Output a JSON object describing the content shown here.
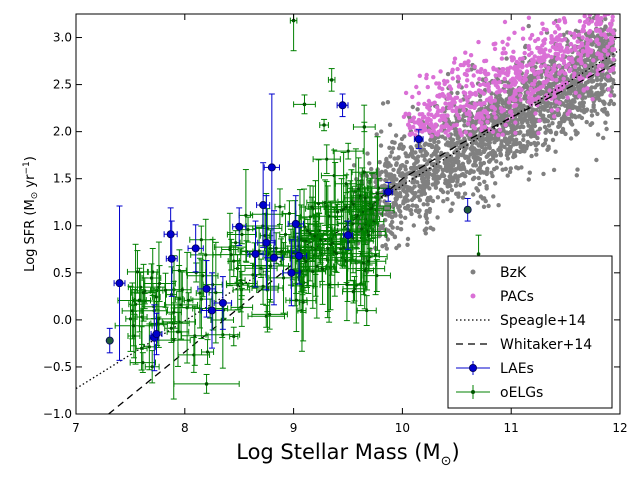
{
  "chart_data": {
    "type": "scatter",
    "title": "",
    "xlabel_main": "Log Stellar Mass (M",
    "xlabel_sub": "⊙",
    "xlabel_end": ")",
    "ylabel_main": "Log SFR (M",
    "ylabel_sub": "⊙",
    "ylabel_mid": " yr",
    "ylabel_sup": "−1",
    "ylabel_end": ")",
    "xlim": [
      7,
      12
    ],
    "ylim": [
      -1.0,
      3.25
    ],
    "xticks": [
      7,
      8,
      9,
      10,
      11,
      12
    ],
    "xtick_labels": [
      "7",
      "8",
      "9",
      "10",
      "11",
      "12"
    ],
    "yticks": [
      -1.0,
      -0.5,
      0.0,
      0.5,
      1.0,
      1.5,
      2.0,
      2.5,
      3.0
    ],
    "ytick_labels": [
      "−1.0",
      "−0.5",
      "0.0",
      "0.5",
      "1.0",
      "1.5",
      "2.0",
      "2.5",
      "3.0"
    ],
    "grid": false,
    "legend_position": "bottom-right",
    "colors": {
      "bzk": "#808080",
      "pacs": "#da70d6",
      "lae": "#0000cc",
      "lae_edge": "#000055",
      "oelg": "#008000",
      "oelg_marker": "#005500",
      "line": "#000000"
    },
    "series": [
      {
        "name": "BzK",
        "kind": "cloud",
        "count": 2200,
        "x_range": [
          9.55,
          11.95
        ],
        "trend": {
          "slope": 0.68,
          "pivot_x": 10.8,
          "pivot_y": 2.0
        },
        "scatter_sigma": 0.28
      },
      {
        "name": "PACs",
        "kind": "cloud",
        "count": 750,
        "x_range": [
          10.0,
          11.95
        ],
        "trend": {
          "slope": 0.55,
          "pivot_x": 11.0,
          "pivot_y": 2.55
        },
        "scatter_sigma": 0.26,
        "y_min": 1.95
      },
      {
        "name": "Speagle+14",
        "kind": "line",
        "style": "dotted",
        "x": [
          7.0,
          12.0
        ],
        "y": [
          -0.73,
          2.87
        ]
      },
      {
        "name": "Whitaker+14",
        "kind": "line",
        "style": "dashed",
        "x": [
          7.3,
          9.0,
          9.6,
          10.0,
          10.5,
          11.0,
          12.0
        ],
        "y": [
          -1.0,
          0.6,
          1.1,
          1.5,
          1.85,
          2.15,
          2.75
        ]
      },
      {
        "name": "LAEs",
        "kind": "errorbar",
        "points": [
          {
            "x": 7.31,
            "y": -0.22,
            "yerr": 0.13,
            "xerr": 0.0,
            "dark": true
          },
          {
            "x": 7.4,
            "y": 0.39,
            "yerr": 0.82,
            "xerr": 0.05
          },
          {
            "x": 7.72,
            "y": -0.19,
            "yerr": 0.35,
            "xerr": 0.04
          },
          {
            "x": 7.74,
            "y": -0.15,
            "yerr": 0.22,
            "xerr": 0.05
          },
          {
            "x": 7.87,
            "y": 0.91,
            "yerr": 0.28,
            "xerr": 0.06
          },
          {
            "x": 7.88,
            "y": 0.65,
            "yerr": 0.4,
            "xerr": 0.05
          },
          {
            "x": 8.1,
            "y": 0.76,
            "yerr": 0.25,
            "xerr": 0.07
          },
          {
            "x": 8.2,
            "y": 0.33,
            "yerr": 0.3,
            "xerr": 0.08
          },
          {
            "x": 8.25,
            "y": 0.1,
            "yerr": 0.4,
            "xerr": 0.1
          },
          {
            "x": 8.35,
            "y": 0.18,
            "yerr": 0.28,
            "xerr": 0.08
          },
          {
            "x": 8.5,
            "y": 0.99,
            "yerr": 0.2,
            "xerr": 0.06
          },
          {
            "x": 8.65,
            "y": 0.7,
            "yerr": 0.35,
            "xerr": 0.07
          },
          {
            "x": 8.72,
            "y": 1.22,
            "yerr": 0.45,
            "xerr": 0.06
          },
          {
            "x": 8.75,
            "y": 0.82,
            "yerr": 0.5,
            "xerr": 0.08
          },
          {
            "x": 8.8,
            "y": 1.62,
            "yerr": 0.78,
            "xerr": 0.07
          },
          {
            "x": 8.82,
            "y": 0.66,
            "yerr": 0.5,
            "xerr": 0.08
          },
          {
            "x": 8.98,
            "y": 0.5,
            "yerr": 0.35,
            "xerr": 0.08
          },
          {
            "x": 9.02,
            "y": 1.02,
            "yerr": 0.3,
            "xerr": 0.07
          },
          {
            "x": 9.05,
            "y": 0.68,
            "yerr": 0.3,
            "xerr": 0.07
          },
          {
            "x": 9.45,
            "y": 2.28,
            "yerr": 0.12,
            "xerr": 0.05
          },
          {
            "x": 9.5,
            "y": 0.9,
            "yerr": 0.15,
            "xerr": 0.04
          },
          {
            "x": 9.87,
            "y": 1.36,
            "yerr": 0.1,
            "xerr": 0.04
          },
          {
            "x": 10.15,
            "y": 1.92,
            "yerr": 0.1,
            "xerr": 0.04
          },
          {
            "x": 10.6,
            "y": 1.17,
            "yerr": 0.12,
            "xerr": 0.0,
            "dark": true
          }
        ]
      },
      {
        "name": "oELGs",
        "kind": "errorbar",
        "count": 230,
        "x_range": [
          7.5,
          10.7
        ],
        "trend": {
          "slope": 0.5,
          "pivot_x": 8.8,
          "pivot_y": 0.6
        },
        "scatter_sigma": 0.3,
        "outliers": [
          {
            "x": 9.0,
            "y": 3.18,
            "yerr": 0.32,
            "xerr": 0.03
          },
          {
            "x": 9.35,
            "y": 2.55,
            "yerr": 0.12,
            "xerr": 0.03
          },
          {
            "x": 9.1,
            "y": 2.29,
            "yerr": 0.1,
            "xerr": 0.1
          },
          {
            "x": 9.55,
            "y": 0.3,
            "yerr": 0.12,
            "xerr": 0.1
          },
          {
            "x": 10.7,
            "y": 0.7,
            "yerr": 0.2,
            "xerr": 0.0
          },
          {
            "x": 8.2,
            "y": -0.68,
            "yerr": 0.1,
            "xerr": 0.3
          },
          {
            "x": 9.65,
            "y": 2.05,
            "yerr": 0.05,
            "xerr": 0.1
          },
          {
            "x": 9.28,
            "y": 2.07,
            "yerr": 0.06,
            "xerr": 0.04
          }
        ]
      }
    ],
    "legend": [
      {
        "label": "BzK",
        "marker": "dot",
        "color_key": "bzk"
      },
      {
        "label": "PACs",
        "marker": "dot",
        "color_key": "pacs"
      },
      {
        "label": "Speagle+14",
        "marker": "dotted-line",
        "color_key": "line"
      },
      {
        "label": "Whitaker+14",
        "marker": "dashed-line",
        "color_key": "line"
      },
      {
        "label": "LAEs",
        "marker": "errorbar-circle",
        "color_key": "lae"
      },
      {
        "label": "oELGs",
        "marker": "errorbar-dot",
        "color_key": "oelg"
      }
    ]
  }
}
